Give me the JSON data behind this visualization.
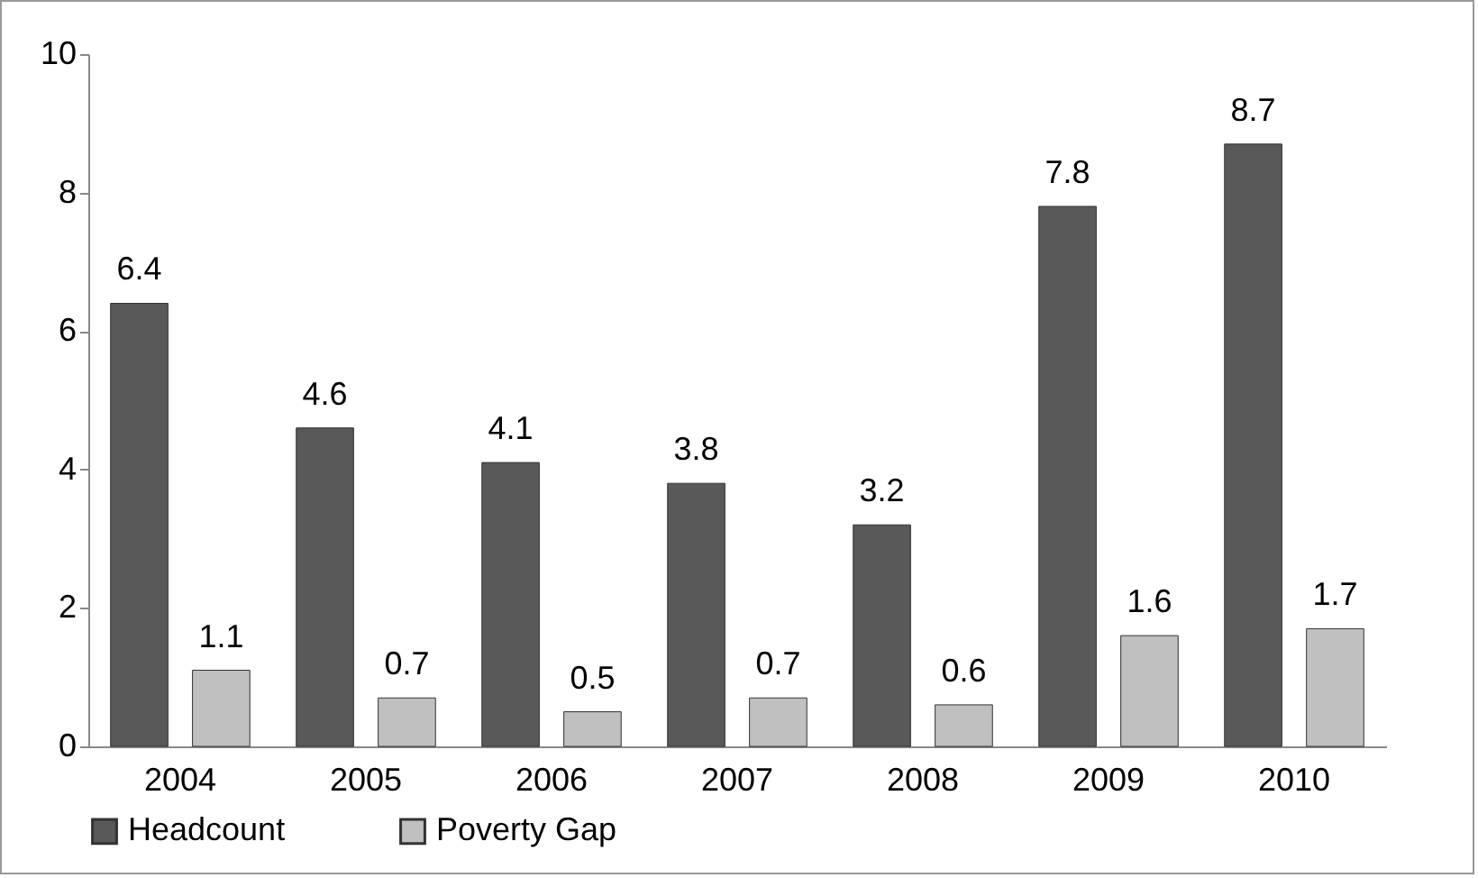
{
  "chart_data": {
    "type": "bar",
    "categories": [
      "2004",
      "2005",
      "2006",
      "2007",
      "2008",
      "2009",
      "2010"
    ],
    "series": [
      {
        "name": "Headcount",
        "color": "#595959",
        "values": [
          6.4,
          4.6,
          4.1,
          3.8,
          3.2,
          7.8,
          8.7
        ]
      },
      {
        "name": "Poverty Gap",
        "color": "#c0c0c0",
        "values": [
          1.1,
          0.7,
          0.5,
          0.7,
          0.6,
          1.6,
          1.7
        ]
      }
    ],
    "ylim": [
      0,
      10
    ],
    "yticks": [
      0,
      2,
      4,
      6,
      8,
      10
    ],
    "data_labels": true,
    "legend": "bottom"
  }
}
